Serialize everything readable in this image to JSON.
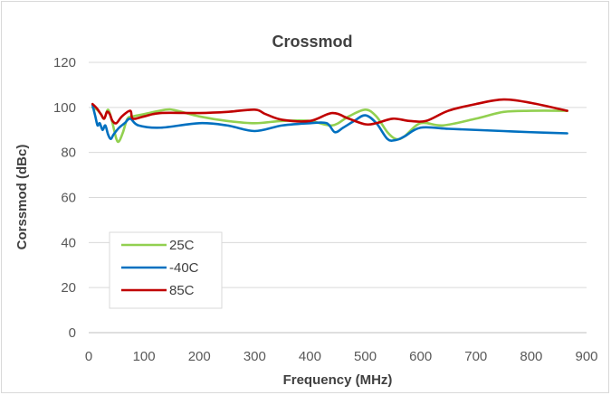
{
  "chart_data": {
    "type": "line",
    "title": "Crossmod",
    "xlabel": "Frequency (MHz)",
    "ylabel": "Corssmod (dBc)",
    "xlim": [
      0,
      900
    ],
    "ylim": [
      0,
      120
    ],
    "xticks": [
      0,
      100,
      200,
      300,
      400,
      500,
      600,
      700,
      800,
      900
    ],
    "yticks": [
      0,
      20,
      40,
      60,
      80,
      100,
      120
    ],
    "grid": "horizontal",
    "legend": "bottom-left",
    "series": [
      {
        "name": "25C",
        "color": "#92d050",
        "points": [
          [
            7,
            100
          ],
          [
            15,
            99
          ],
          [
            22,
            97
          ],
          [
            28,
            95
          ],
          [
            35,
            99
          ],
          [
            42,
            94
          ],
          [
            50,
            86
          ],
          [
            55,
            85
          ],
          [
            62,
            89
          ],
          [
            70,
            95
          ],
          [
            80,
            96
          ],
          [
            100,
            97
          ],
          [
            140,
            99
          ],
          [
            160,
            98.5
          ],
          [
            200,
            96
          ],
          [
            250,
            94
          ],
          [
            300,
            93
          ],
          [
            350,
            94
          ],
          [
            400,
            94
          ],
          [
            440,
            92
          ],
          [
            470,
            96
          ],
          [
            500,
            99
          ],
          [
            520,
            96
          ],
          [
            540,
            89
          ],
          [
            555,
            86
          ],
          [
            570,
            87
          ],
          [
            600,
            93
          ],
          [
            640,
            92
          ],
          [
            700,
            95
          ],
          [
            750,
            98
          ],
          [
            800,
            98.5
          ],
          [
            865,
            98.5
          ]
        ]
      },
      {
        "name": "-40C",
        "color": "#0070c0",
        "points": [
          [
            7,
            101
          ],
          [
            12,
            96
          ],
          [
            16,
            92
          ],
          [
            20,
            93
          ],
          [
            25,
            90
          ],
          [
            30,
            92
          ],
          [
            35,
            88
          ],
          [
            40,
            86
          ],
          [
            45,
            88
          ],
          [
            55,
            91
          ],
          [
            65,
            93
          ],
          [
            75,
            95
          ],
          [
            90,
            92
          ],
          [
            130,
            91
          ],
          [
            200,
            93
          ],
          [
            250,
            92
          ],
          [
            300,
            89.5
          ],
          [
            350,
            92
          ],
          [
            400,
            93
          ],
          [
            430,
            93
          ],
          [
            445,
            89
          ],
          [
            460,
            91
          ],
          [
            480,
            94
          ],
          [
            500,
            96.5
          ],
          [
            520,
            93
          ],
          [
            540,
            86
          ],
          [
            555,
            85.5
          ],
          [
            570,
            87
          ],
          [
            600,
            91
          ],
          [
            650,
            90.5
          ],
          [
            700,
            90
          ],
          [
            750,
            89.5
          ],
          [
            800,
            89
          ],
          [
            865,
            88.5
          ]
        ]
      },
      {
        "name": "85C",
        "color": "#c00000",
        "points": [
          [
            7,
            101.5
          ],
          [
            15,
            99.5
          ],
          [
            22,
            97
          ],
          [
            28,
            95
          ],
          [
            33,
            98
          ],
          [
            38,
            97
          ],
          [
            43,
            94
          ],
          [
            50,
            93
          ],
          [
            60,
            96
          ],
          [
            75,
            98.5
          ],
          [
            80,
            95
          ],
          [
            100,
            96
          ],
          [
            130,
            97.5
          ],
          [
            200,
            97.5
          ],
          [
            250,
            98
          ],
          [
            300,
            99
          ],
          [
            320,
            97
          ],
          [
            350,
            94.5
          ],
          [
            400,
            94
          ],
          [
            440,
            97.5
          ],
          [
            470,
            95
          ],
          [
            500,
            92.5
          ],
          [
            520,
            93
          ],
          [
            550,
            95
          ],
          [
            580,
            94
          ],
          [
            610,
            94
          ],
          [
            650,
            98.5
          ],
          [
            700,
            101.5
          ],
          [
            750,
            103.5
          ],
          [
            800,
            102
          ],
          [
            865,
            98.5
          ]
        ]
      }
    ]
  }
}
